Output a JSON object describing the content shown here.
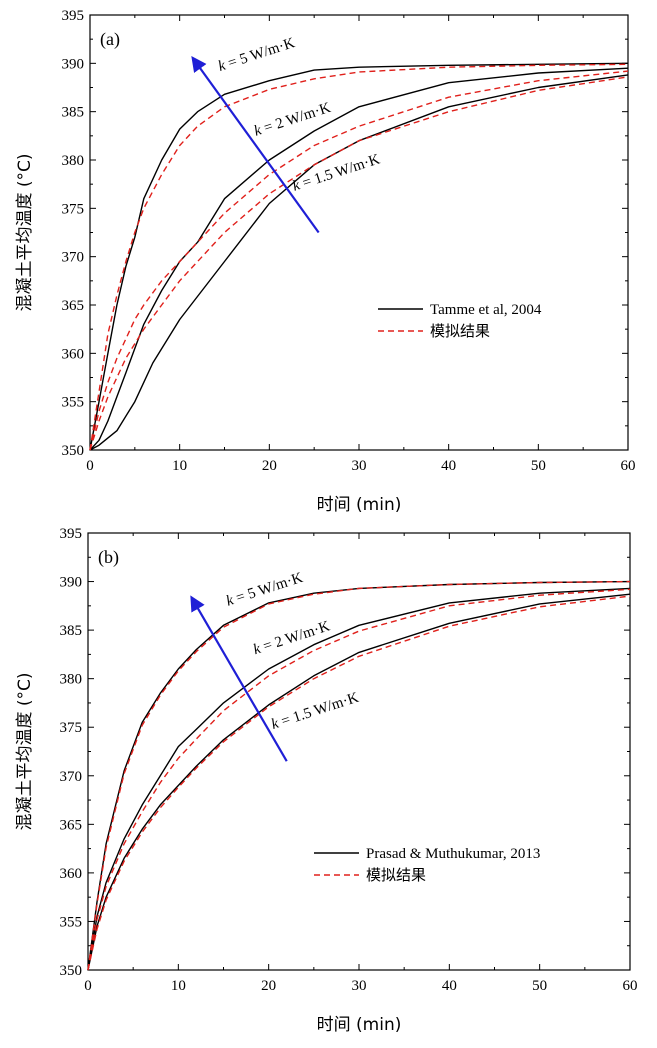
{
  "chart_data": [
    {
      "type": "line",
      "panel_label": "(a)",
      "xlabel": "时间 (min)",
      "ylabel": "混凝土平均温度 (°C)",
      "xlim": [
        0,
        60
      ],
      "ylim": [
        350,
        395
      ],
      "xticks": [
        0,
        10,
        20,
        30,
        40,
        50,
        60
      ],
      "yticks": [
        350,
        355,
        360,
        365,
        370,
        375,
        380,
        385,
        390,
        395
      ],
      "legend": {
        "position": "lower-right",
        "entries": [
          {
            "label": "Tamme et al, 2004",
            "style": "solid",
            "color": "#000000"
          },
          {
            "label": "模拟结果",
            "style": "dashed",
            "color": "#e0201b"
          }
        ]
      },
      "annotations": [
        {
          "k": "k",
          "text": " = 5 W/m·K",
          "x": 14.5,
          "y": 389.2
        },
        {
          "k": "k",
          "text": " = 2 W/m·K",
          "x": 18.5,
          "y": 382.5
        },
        {
          "k": "k",
          "text": " = 1.5 W/m·K",
          "x": 22.8,
          "y": 376.8
        }
      ],
      "arrow": {
        "from": [
          25.5,
          372.5
        ],
        "to": [
          11.5,
          390.5
        ],
        "color": "#1f1fd6"
      },
      "series": [
        {
          "name": "Tamme et al, 2004",
          "group": "k = 5 W/m·K",
          "style": "solid",
          "color": "#000000",
          "x": [
            0,
            1,
            2,
            3,
            4,
            5,
            6,
            8,
            10,
            12,
            15,
            20,
            25,
            30,
            40,
            50,
            60
          ],
          "y": [
            350,
            355,
            360,
            365,
            369,
            372,
            376,
            380,
            383.2,
            385,
            386.8,
            388.2,
            389.3,
            389.6,
            389.8,
            389.9,
            390
          ]
        },
        {
          "name": "模拟结果",
          "group": "k = 5 W/m·K",
          "style": "dashed",
          "color": "#e0201b",
          "x": [
            0,
            1,
            2,
            3,
            4,
            5,
            6,
            8,
            10,
            12,
            15,
            20,
            25,
            30,
            40,
            50,
            60
          ],
          "y": [
            350,
            356,
            362,
            366,
            369.5,
            372.5,
            375,
            378.5,
            381.5,
            383.5,
            385.5,
            387.3,
            388.4,
            389.1,
            389.6,
            389.8,
            389.9
          ]
        },
        {
          "name": "Tamme et al, 2004",
          "group": "k = 2 W/m·K",
          "style": "solid",
          "color": "#000000",
          "x": [
            0,
            1,
            2,
            3,
            4,
            5,
            6,
            8,
            10,
            12,
            15,
            20,
            25,
            30,
            40,
            50,
            60
          ],
          "y": [
            350,
            351,
            353,
            355.5,
            358,
            360.5,
            363,
            366.5,
            369.5,
            371.5,
            376,
            380,
            383,
            385.5,
            388,
            389,
            389.5
          ]
        },
        {
          "name": "模拟结果",
          "group": "k = 2 W/m·K",
          "style": "dashed",
          "color": "#e0201b",
          "x": [
            0,
            1,
            2,
            3,
            4,
            5,
            6,
            8,
            10,
            12,
            15,
            20,
            25,
            30,
            40,
            50,
            60
          ],
          "y": [
            350,
            354,
            357,
            359.5,
            361.5,
            363.5,
            365,
            367.5,
            369.5,
            371.5,
            374.5,
            378.5,
            381.5,
            383.5,
            386.5,
            388.2,
            389.2
          ]
        },
        {
          "name": "Tamme et al, 2004",
          "group": "k = 1.5 W/m·K",
          "style": "solid",
          "color": "#000000",
          "x": [
            0,
            1,
            3,
            5,
            7,
            10,
            15,
            20,
            25,
            30,
            40,
            50,
            60
          ],
          "y": [
            350,
            350.5,
            352,
            355,
            359,
            363.5,
            369.5,
            375.5,
            379.5,
            382,
            385.5,
            387.5,
            388.8
          ]
        },
        {
          "name": "模拟结果",
          "group": "k = 1.5 W/m·K",
          "style": "dashed",
          "color": "#e0201b",
          "x": [
            0,
            1,
            2,
            3,
            4,
            5,
            6,
            8,
            10,
            12,
            15,
            20,
            25,
            30,
            40,
            50,
            60
          ],
          "y": [
            350,
            353,
            355.5,
            357.5,
            359.5,
            361,
            362.5,
            365,
            367.5,
            369.5,
            372.5,
            376.5,
            379.5,
            382,
            385,
            387.2,
            388.6
          ]
        }
      ]
    },
    {
      "type": "line",
      "panel_label": "(b)",
      "xlabel": "时间 (min)",
      "ylabel": "混凝土平均温度 (°C)",
      "xlim": [
        0,
        60
      ],
      "ylim": [
        350,
        395
      ],
      "xticks": [
        0,
        10,
        20,
        30,
        40,
        50,
        60
      ],
      "yticks": [
        350,
        355,
        360,
        365,
        370,
        375,
        380,
        385,
        390,
        395
      ],
      "legend": {
        "position": "lower-right",
        "entries": [
          {
            "label": "Prasad & Muthukumar, 2013",
            "style": "solid",
            "color": "#000000"
          },
          {
            "label": "模拟结果",
            "style": "dashed",
            "color": "#e0201b"
          }
        ]
      },
      "annotations": [
        {
          "k": "k",
          "text": " = 5 W/m·K",
          "x": 15.5,
          "y": 387.5
        },
        {
          "k": "k",
          "text": " = 2 W/m·K",
          "x": 18.5,
          "y": 382.5
        },
        {
          "k": "k",
          "text": " = 1.5 W/m·K",
          "x": 20.5,
          "y": 374.8
        }
      ],
      "arrow": {
        "from": [
          22,
          371.5
        ],
        "to": [
          11.5,
          388.3
        ],
        "color": "#1f1fd6"
      },
      "series": [
        {
          "name": "Prasad & Muthukumar, 2013",
          "group": "k = 5 W/m·K",
          "style": "solid",
          "color": "#000000",
          "x": [
            0,
            1,
            2,
            4,
            6,
            8,
            10,
            12,
            15,
            20,
            25,
            30,
            40,
            50,
            60
          ],
          "y": [
            350,
            357,
            363,
            370.5,
            375.5,
            378.5,
            381,
            383,
            385.5,
            387.8,
            388.8,
            389.3,
            389.7,
            389.9,
            390
          ]
        },
        {
          "name": "模拟结果",
          "group": "k = 5 W/m·K",
          "style": "dashed",
          "color": "#e0201b",
          "x": [
            0,
            1,
            2,
            4,
            6,
            8,
            10,
            12,
            15,
            20,
            25,
            30,
            40,
            50,
            60
          ],
          "y": [
            350,
            356.8,
            362.6,
            370.2,
            375.2,
            378.3,
            380.8,
            382.8,
            385.3,
            387.7,
            388.7,
            389.3,
            389.7,
            389.9,
            390
          ]
        },
        {
          "name": "Prasad & Muthukumar, 2013",
          "group": "k = 2 W/m·K",
          "style": "solid",
          "color": "#000000",
          "x": [
            0,
            1,
            2,
            4,
            6,
            8,
            10,
            12,
            15,
            20,
            25,
            30,
            40,
            50,
            60
          ],
          "y": [
            350,
            355.5,
            359,
            363.5,
            367,
            370,
            373,
            374.8,
            377.5,
            381,
            383.5,
            385.5,
            387.8,
            388.8,
            389.3
          ]
        },
        {
          "name": "模拟结果",
          "group": "k = 2 W/m·K",
          "style": "dashed",
          "color": "#e0201b",
          "x": [
            0,
            1,
            2,
            4,
            6,
            8,
            10,
            12,
            15,
            20,
            25,
            30,
            40,
            50,
            60
          ],
          "y": [
            350,
            355.2,
            358.6,
            363,
            366.3,
            369.3,
            371.8,
            373.8,
            376.7,
            380.3,
            382.9,
            384.9,
            387.5,
            388.6,
            389.2
          ]
        },
        {
          "name": "Prasad & Muthukumar, 2013",
          "group": "k = 1.5 W/m·K",
          "style": "solid",
          "color": "#000000",
          "x": [
            0,
            1,
            2,
            4,
            6,
            8,
            10,
            12,
            15,
            20,
            25,
            30,
            40,
            50,
            60
          ],
          "y": [
            350,
            354.5,
            357.5,
            361.5,
            364.5,
            367,
            369,
            371,
            373.7,
            377.3,
            380.3,
            382.7,
            385.7,
            387.7,
            388.7
          ]
        },
        {
          "name": "模拟结果",
          "group": "k = 1.5 W/m·K",
          "style": "dashed",
          "color": "#e0201b",
          "x": [
            0,
            1,
            2,
            4,
            6,
            8,
            10,
            12,
            15,
            20,
            25,
            30,
            40,
            50,
            60
          ],
          "y": [
            350,
            354.2,
            357.2,
            361.2,
            364.2,
            366.7,
            368.8,
            370.8,
            373.5,
            377.1,
            380,
            382.3,
            385.4,
            387.4,
            388.5
          ]
        }
      ]
    }
  ]
}
